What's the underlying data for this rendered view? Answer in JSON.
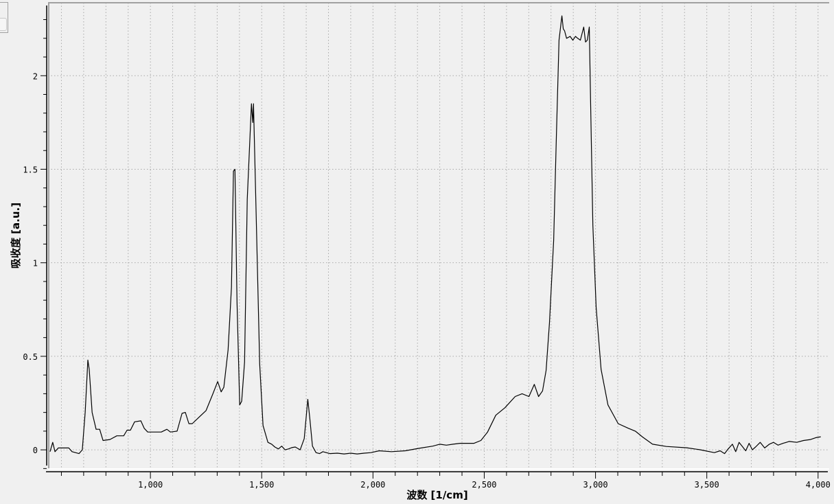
{
  "chart_data": {
    "type": "line",
    "title": "",
    "xlabel": "波数 [1/cm]",
    "ylabel": "吸收度 [a.u.]",
    "xlim": [
      540,
      4050
    ],
    "ylim": [
      -0.106,
      2.39
    ],
    "grid": true,
    "x_ticks": [
      1000,
      1500,
      2000,
      2500,
      3000,
      3500,
      4000
    ],
    "x_tick_labels": [
      "1,000",
      "1,500",
      "2,000",
      "2,500",
      "3,000",
      "3,500",
      "4,000"
    ],
    "y_ticks": [
      0,
      0.5,
      1,
      1.5,
      2
    ],
    "y_tick_labels": [
      "0",
      "0.5",
      "1",
      "1.5",
      "2"
    ],
    "line_color": "#000000",
    "background_color": "#f0f0f0",
    "series": [
      {
        "x": [
          549,
          561,
          571,
          586,
          633,
          648,
          679,
          694,
          707,
          719,
          725,
          738,
          756,
          772,
          787,
          818,
          849,
          880,
          895,
          910,
          929,
          957,
          972,
          988,
          1049,
          1074,
          1090,
          1120,
          1142,
          1157,
          1173,
          1188,
          1219,
          1250,
          1281,
          1302,
          1318,
          1330,
          1349,
          1364,
          1373,
          1380,
          1389,
          1401,
          1410,
          1423,
          1435,
          1454,
          1460,
          1463,
          1475,
          1491,
          1506,
          1528,
          1545,
          1559,
          1575,
          1590,
          1605,
          1620,
          1635,
          1651,
          1673,
          1691,
          1707,
          1716,
          1728,
          1744,
          1760,
          1775,
          1806,
          1840,
          1870,
          1900,
          1929,
          1960,
          1991,
          2028,
          2083,
          2145,
          2207,
          2269,
          2300,
          2330,
          2360,
          2392,
          2454,
          2485,
          2515,
          2552,
          2593,
          2639,
          2670,
          2701,
          2725,
          2744,
          2762,
          2778,
          2793,
          2812,
          2824,
          2836,
          2849,
          2855,
          2861,
          2870,
          2886,
          2898,
          2910,
          2920,
          2932,
          2947,
          2955,
          2963,
          2972,
          2978,
          2988,
          3003,
          3025,
          3056,
          3102,
          3148,
          3179,
          3210,
          3256,
          3318,
          3410,
          3472,
          3534,
          3560,
          3580,
          3596,
          3615,
          3630,
          3645,
          3657,
          3675,
          3690,
          3705,
          3719,
          3740,
          3760,
          3781,
          3800,
          3820,
          3843,
          3870,
          3904,
          3935,
          3966,
          3990,
          4012
        ],
        "y": [
          -0.01,
          0.04,
          -0.01,
          0.01,
          0.01,
          -0.01,
          -0.02,
          0.0,
          0.2,
          0.48,
          0.43,
          0.2,
          0.11,
          0.11,
          0.05,
          0.055,
          0.075,
          0.075,
          0.105,
          0.105,
          0.15,
          0.155,
          0.115,
          0.095,
          0.095,
          0.11,
          0.095,
          0.1,
          0.195,
          0.2,
          0.14,
          0.14,
          0.175,
          0.21,
          0.3,
          0.365,
          0.31,
          0.335,
          0.535,
          0.87,
          1.49,
          1.5,
          0.79,
          0.24,
          0.26,
          0.47,
          1.34,
          1.85,
          1.75,
          1.85,
          1.27,
          0.46,
          0.13,
          0.04,
          0.03,
          0.015,
          0.005,
          0.02,
          0.0,
          0.005,
          0.012,
          0.015,
          0.0,
          0.06,
          0.27,
          0.17,
          0.02,
          -0.015,
          -0.02,
          -0.01,
          -0.02,
          -0.018,
          -0.022,
          -0.018,
          -0.022,
          -0.018,
          -0.015,
          -0.005,
          -0.01,
          -0.005,
          0.008,
          0.02,
          0.03,
          0.025,
          0.03,
          0.035,
          0.035,
          0.05,
          0.095,
          0.185,
          0.225,
          0.285,
          0.3,
          0.285,
          0.35,
          0.285,
          0.315,
          0.425,
          0.68,
          1.12,
          1.67,
          2.19,
          2.32,
          2.25,
          2.24,
          2.2,
          2.21,
          2.19,
          2.21,
          2.2,
          2.19,
          2.26,
          2.18,
          2.19,
          2.26,
          1.86,
          1.2,
          0.76,
          0.43,
          0.24,
          0.14,
          0.115,
          0.1,
          0.07,
          0.03,
          0.018,
          0.011,
          0.0,
          -0.015,
          -0.005,
          -0.02,
          0.005,
          0.03,
          -0.01,
          0.04,
          0.022,
          -0.005,
          0.035,
          0.0,
          0.015,
          0.04,
          0.01,
          0.03,
          0.04,
          0.025,
          0.035,
          0.045,
          0.04,
          0.05,
          0.055,
          0.065,
          0.07
        ]
      }
    ]
  }
}
